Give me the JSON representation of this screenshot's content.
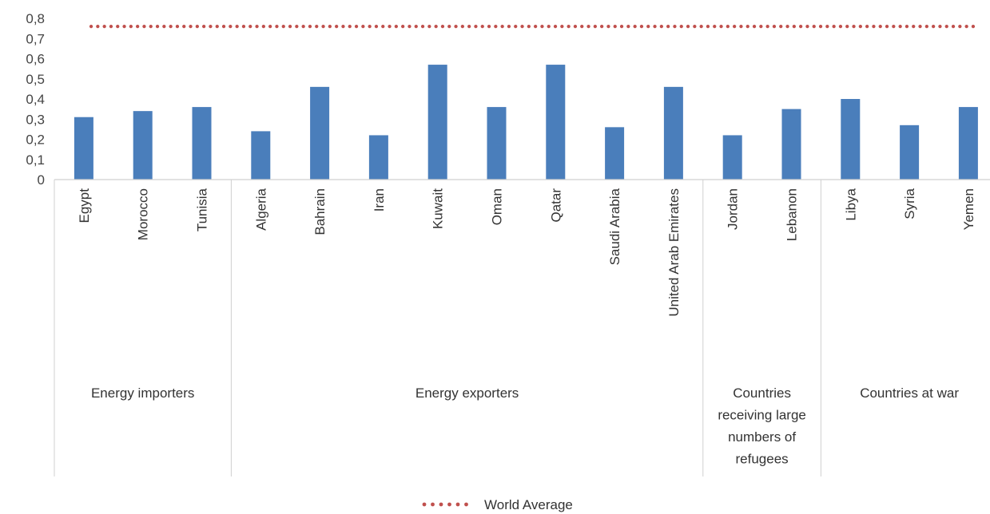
{
  "chart_data": {
    "type": "bar",
    "categories": [
      "Egypt",
      "Morocco",
      "Tunisia",
      "Algeria",
      "Bahrain",
      "Iran",
      "Kuwait",
      "Oman",
      "Qatar",
      "Saudi Arabia",
      "United Arab Emirates",
      "Jordan",
      "Lebanon",
      "Libya",
      "Syria",
      "Yemen"
    ],
    "values": [
      0.31,
      0.34,
      0.36,
      0.24,
      0.46,
      0.22,
      0.57,
      0.36,
      0.57,
      0.26,
      0.46,
      0.22,
      0.35,
      0.4,
      0.27,
      0.36
    ],
    "groups": [
      {
        "label": [
          "Energy importers"
        ],
        "count": 3
      },
      {
        "label": [
          "Energy exporters"
        ],
        "count": 8
      },
      {
        "label": [
          "Countries",
          "receiving large",
          "numbers of",
          "refugees"
        ],
        "count": 2
      },
      {
        "label": [
          "Countries at war"
        ],
        "count": 3
      }
    ],
    "reference_line": {
      "name": "World Average",
      "value": 0.76,
      "style": "dotted",
      "color": "#c0504d"
    },
    "yticks": [
      "0",
      "0,1",
      "0,2",
      "0,3",
      "0,4",
      "0,5",
      "0,6",
      "0,7",
      "0,8"
    ],
    "ylim": [
      0,
      0.8
    ],
    "bar_color": "#4a7ebb",
    "grid": false,
    "legend_position": "bottom"
  }
}
